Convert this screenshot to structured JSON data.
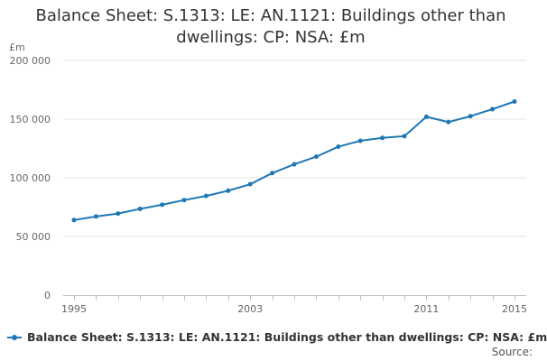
{
  "chart_data": {
    "type": "line",
    "title_lines": [
      "Balance Sheet: S.1313: LE: AN.1121: Buildings other than",
      "dwellings: CP: NSA: £m"
    ],
    "ylabel": "£m",
    "xlabel": "",
    "ylim": [
      0,
      200000
    ],
    "xlim": [
      1995,
      2015
    ],
    "y_ticks": [
      {
        "value": 0,
        "label": "0"
      },
      {
        "value": 50000,
        "label": "50 000"
      },
      {
        "value": 100000,
        "label": "100 000"
      },
      {
        "value": 150000,
        "label": "150 000"
      },
      {
        "value": 200000,
        "label": "200 000"
      }
    ],
    "x_tick_marks": [
      1995,
      1996,
      1997,
      1998,
      1999,
      2000,
      2001,
      2002,
      2003,
      2004,
      2005,
      2006,
      2007,
      2008,
      2009,
      2010,
      2011,
      2012,
      2013,
      2014,
      2015
    ],
    "x_tick_labels": [
      {
        "value": 1995,
        "label": "1995"
      },
      {
        "value": 2003,
        "label": "2003"
      },
      {
        "value": 2011,
        "label": "2011"
      },
      {
        "value": 2015,
        "label": "2015"
      }
    ],
    "grid": "horizontal",
    "legend_position": "bottom",
    "series": [
      {
        "name": "Balance Sheet: S.1313: LE: AN.1121: Buildings other than dwellings: CP: NSA: £m",
        "color": "#1f77b4",
        "x": [
          1995,
          1996,
          1997,
          1998,
          1999,
          2000,
          2001,
          2002,
          2003,
          2004,
          2005,
          2006,
          2007,
          2008,
          2009,
          2010,
          2011,
          2012,
          2013,
          2014,
          2015
        ],
        "values": [
          64000,
          67000,
          69500,
          73500,
          77000,
          81000,
          84500,
          89000,
          94500,
          104000,
          111500,
          118000,
          126500,
          131500,
          134000,
          135500,
          152000,
          147500,
          152500,
          158500,
          165000
        ]
      }
    ]
  },
  "footer": {
    "source_label": "Source:"
  },
  "colors": {
    "grid": "#e6e6e6",
    "axis": "#c0c0c0",
    "series": "#1f77b4"
  }
}
